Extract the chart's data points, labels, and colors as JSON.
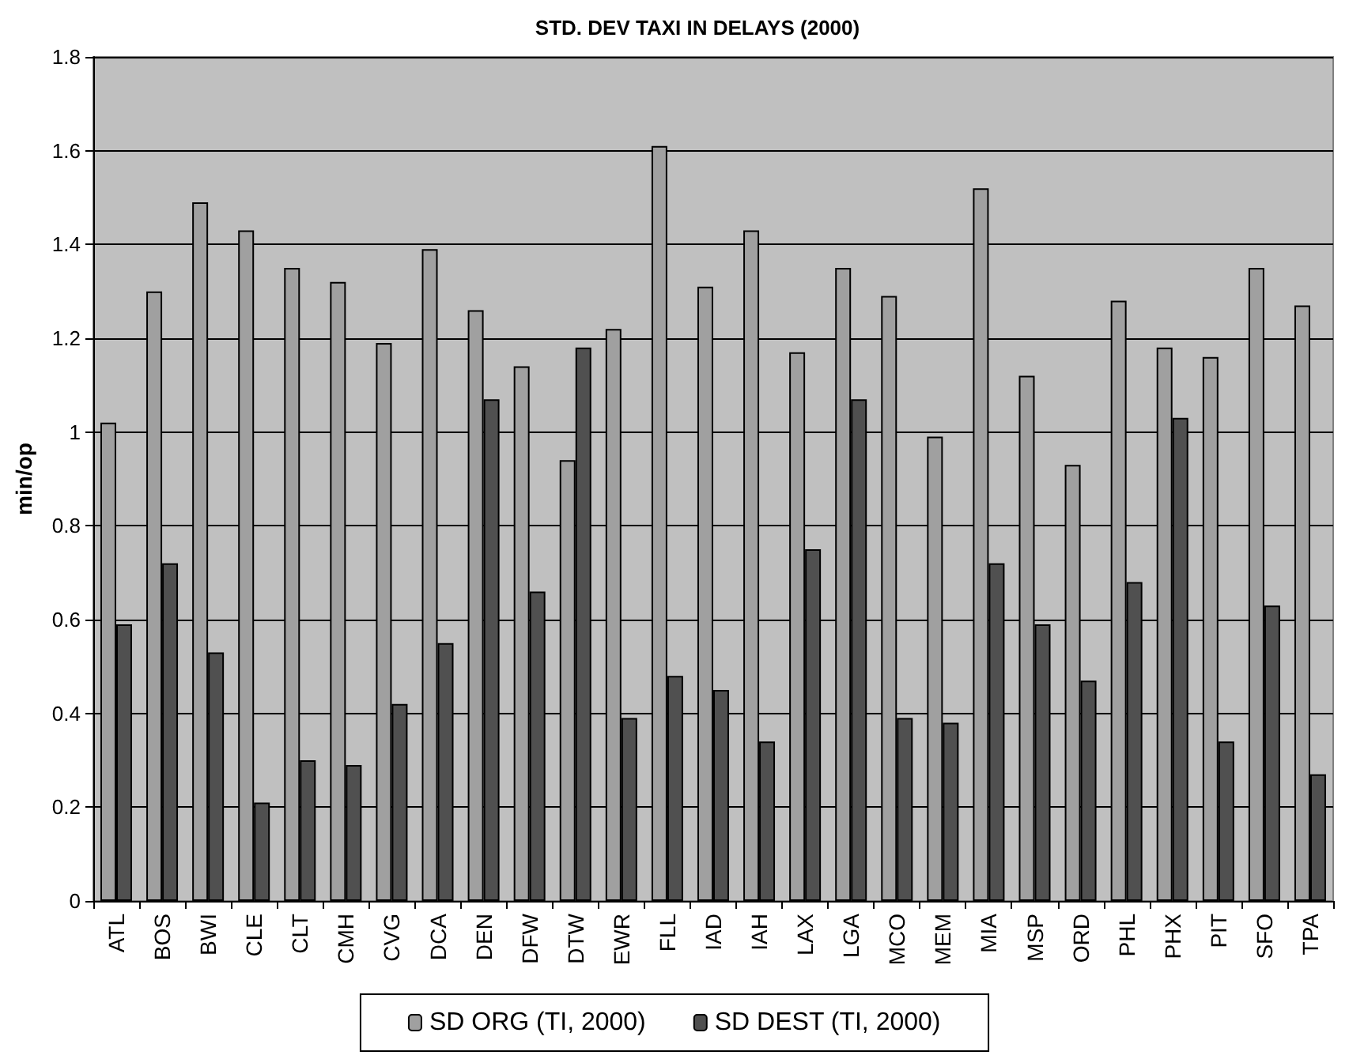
{
  "chart_data": {
    "type": "bar",
    "title": "STD. DEV TAXI IN DELAYS (2000)",
    "ylabel": "min/op",
    "categories": [
      "ATL",
      "BOS",
      "BWI",
      "CLE",
      "CLT",
      "CMH",
      "CVG",
      "DCA",
      "DEN",
      "DFW",
      "DTW",
      "EWR",
      "FLL",
      "IAD",
      "IAH",
      "LAX",
      "LGA",
      "MCO",
      "MEM",
      "MIA",
      "MSP",
      "ORD",
      "PHL",
      "PHX",
      "PIT",
      "SFO",
      "TPA"
    ],
    "series": [
      {
        "name": "SD ORG (TI, 2000)",
        "color": "#a0a0a0",
        "values": [
          1.02,
          1.3,
          1.49,
          1.43,
          1.35,
          1.32,
          1.19,
          1.39,
          1.26,
          1.14,
          0.94,
          1.22,
          1.61,
          1.31,
          1.43,
          1.17,
          1.35,
          1.29,
          0.99,
          1.52,
          1.12,
          0.93,
          1.28,
          1.18,
          1.16,
          1.35,
          1.27
        ]
      },
      {
        "name": "SD DEST (TI, 2000)",
        "color": "#505050",
        "values": [
          0.59,
          0.72,
          0.53,
          0.21,
          0.3,
          0.29,
          0.42,
          0.55,
          1.07,
          0.66,
          1.18,
          0.39,
          0.48,
          0.45,
          0.34,
          0.75,
          1.07,
          0.39,
          0.38,
          0.72,
          0.59,
          0.47,
          0.68,
          1.03,
          0.34,
          0.63,
          0.27
        ]
      }
    ],
    "ylim": [
      0,
      1.8
    ],
    "yticks": [
      0,
      0.2,
      0.4,
      0.6,
      0.8,
      1,
      1.2,
      1.4,
      1.6,
      1.8
    ],
    "grid": "y",
    "legend": "bottom"
  }
}
